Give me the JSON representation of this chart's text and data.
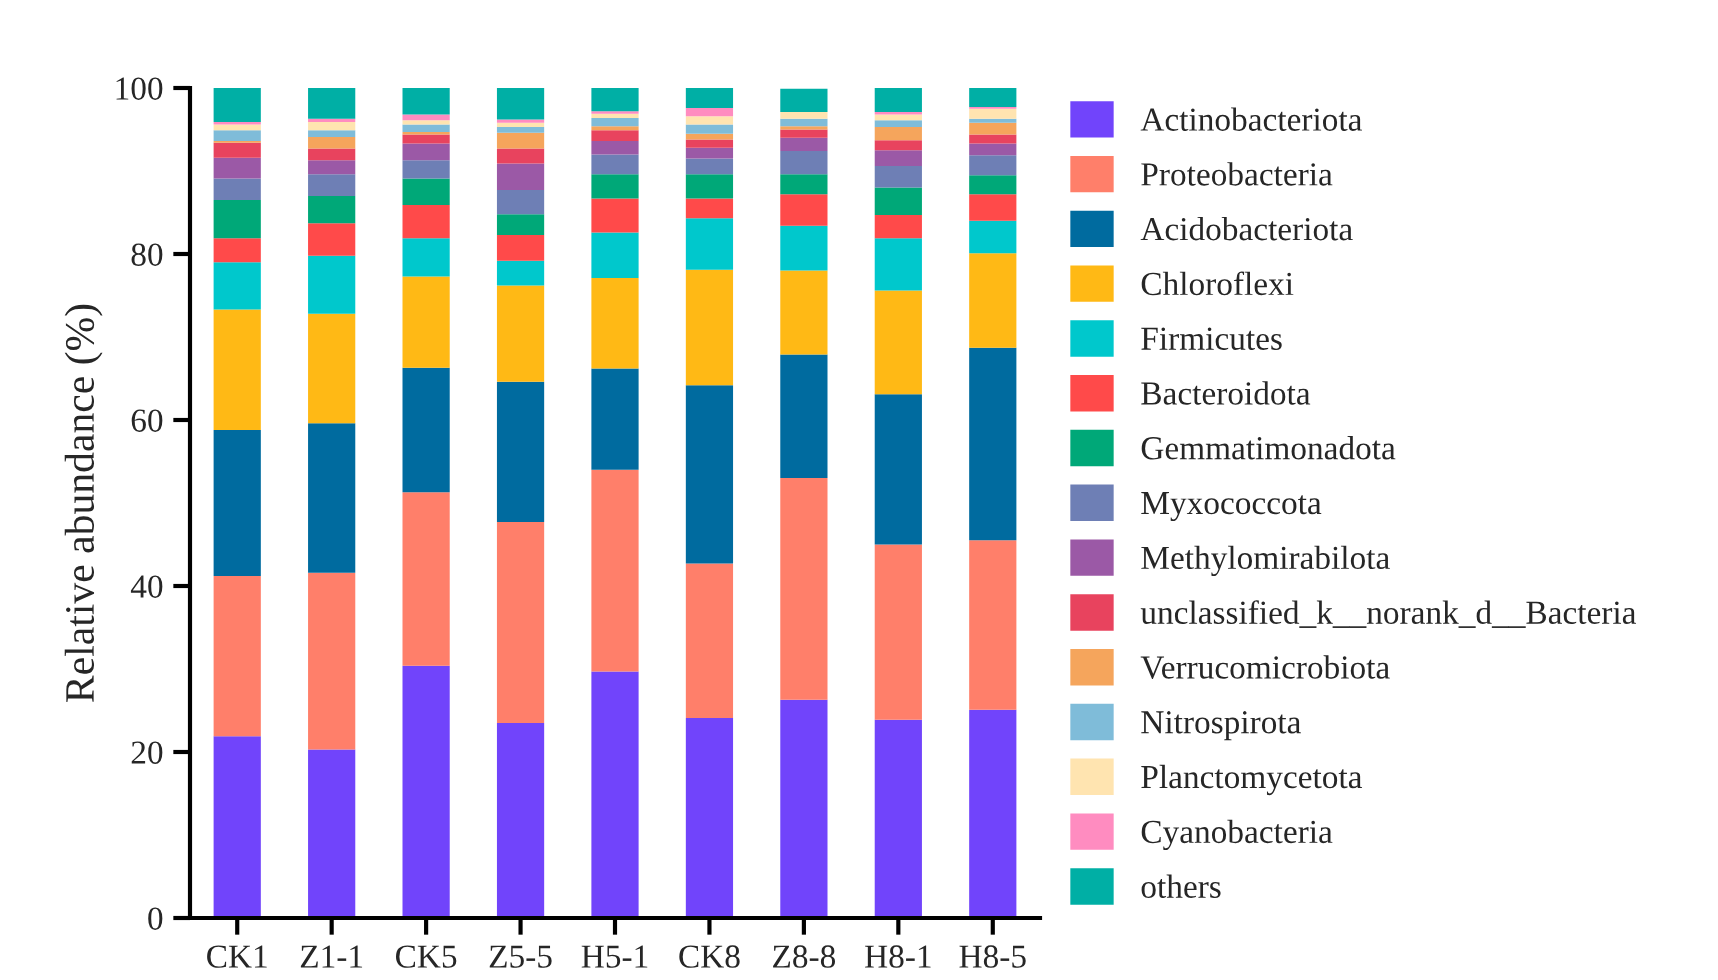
{
  "chart_data": {
    "type": "bar",
    "stacked": true,
    "ylabel": "Relative abundance (%)",
    "categories": [
      "CK1",
      "Z1-1",
      "CK5",
      "Z5-5",
      "H5-1",
      "CK8",
      "Z8-8",
      "H8-1",
      "H8-5"
    ],
    "ylim": [
      0,
      100
    ],
    "yticks": [
      0,
      20,
      40,
      60,
      80,
      100
    ],
    "grid": false,
    "legend": "right",
    "series": [
      {
        "name": "Actinobacteriota",
        "color": "#7144fb",
        "values": [
          21.9,
          20.3,
          30.4,
          23.5,
          29.7,
          24.1,
          26.3,
          23.9,
          25.1
        ]
      },
      {
        "name": "Proteobacteria",
        "color": "#ff7f6a",
        "values": [
          19.3,
          21.3,
          20.9,
          24.2,
          24.3,
          18.6,
          26.7,
          21.1,
          20.4
        ]
      },
      {
        "name": "Acidobacteriota",
        "color": "#006b9f",
        "values": [
          17.6,
          18.0,
          15.0,
          16.9,
          12.2,
          21.5,
          14.9,
          18.1,
          23.2
        ]
      },
      {
        "name": "Chloroflexi",
        "color": "#ffb915",
        "values": [
          14.5,
          13.2,
          11.0,
          11.6,
          10.9,
          13.9,
          10.1,
          12.5,
          11.4
        ]
      },
      {
        "name": "Firmicutes",
        "color": "#00c8cc",
        "values": [
          5.7,
          7.0,
          4.6,
          3.0,
          5.5,
          6.2,
          5.4,
          6.3,
          3.9
        ]
      },
      {
        "name": "Bacteroidota",
        "color": "#ff4a4a",
        "values": [
          2.9,
          3.9,
          4.0,
          3.1,
          4.1,
          2.4,
          3.8,
          2.8,
          3.2
        ]
      },
      {
        "name": "Gemmatimonadota",
        "color": "#00a878",
        "values": [
          4.6,
          3.3,
          3.2,
          2.5,
          2.9,
          2.9,
          2.4,
          3.3,
          2.3
        ]
      },
      {
        "name": "Myxococcota",
        "color": "#6e7fb5",
        "values": [
          2.6,
          2.6,
          2.2,
          2.9,
          2.4,
          1.9,
          2.8,
          2.6,
          2.4
        ]
      },
      {
        "name": "Methylomirabilota",
        "color": "#9b59a6",
        "values": [
          2.5,
          1.7,
          2.0,
          3.2,
          1.6,
          1.3,
          1.6,
          1.9,
          1.4
        ]
      },
      {
        "name": "unclassified_k__norank_d__Bacteria",
        "color": "#e8435e",
        "values": [
          1.8,
          1.4,
          1.1,
          1.8,
          1.3,
          1.0,
          1.0,
          1.2,
          1.1
        ]
      },
      {
        "name": "Verrucomicrobiota",
        "color": "#f5a55c",
        "values": [
          0.2,
          1.4,
          0.3,
          1.9,
          0.5,
          0.7,
          0.4,
          1.6,
          1.4
        ]
      },
      {
        "name": "Nitrospirota",
        "color": "#7fbcd9",
        "values": [
          1.3,
          0.8,
          0.9,
          0.7,
          1.0,
          1.1,
          0.9,
          0.8,
          0.5
        ]
      },
      {
        "name": "Planctomycetota",
        "color": "#ffe4b0",
        "values": [
          0.7,
          1.0,
          0.5,
          0.5,
          0.5,
          1.0,
          0.8,
          0.7,
          1.2
        ]
      },
      {
        "name": "Cyanobacteria",
        "color": "#ff8cc0",
        "values": [
          0.3,
          0.4,
          0.7,
          0.4,
          0.3,
          1.0,
          null,
          0.3,
          0.2
        ]
      },
      {
        "name": "others",
        "color": "#00afa5",
        "values": [
          4.1,
          3.7,
          3.2,
          3.8,
          2.8,
          2.4,
          2.8,
          2.9,
          2.3
        ]
      }
    ]
  }
}
